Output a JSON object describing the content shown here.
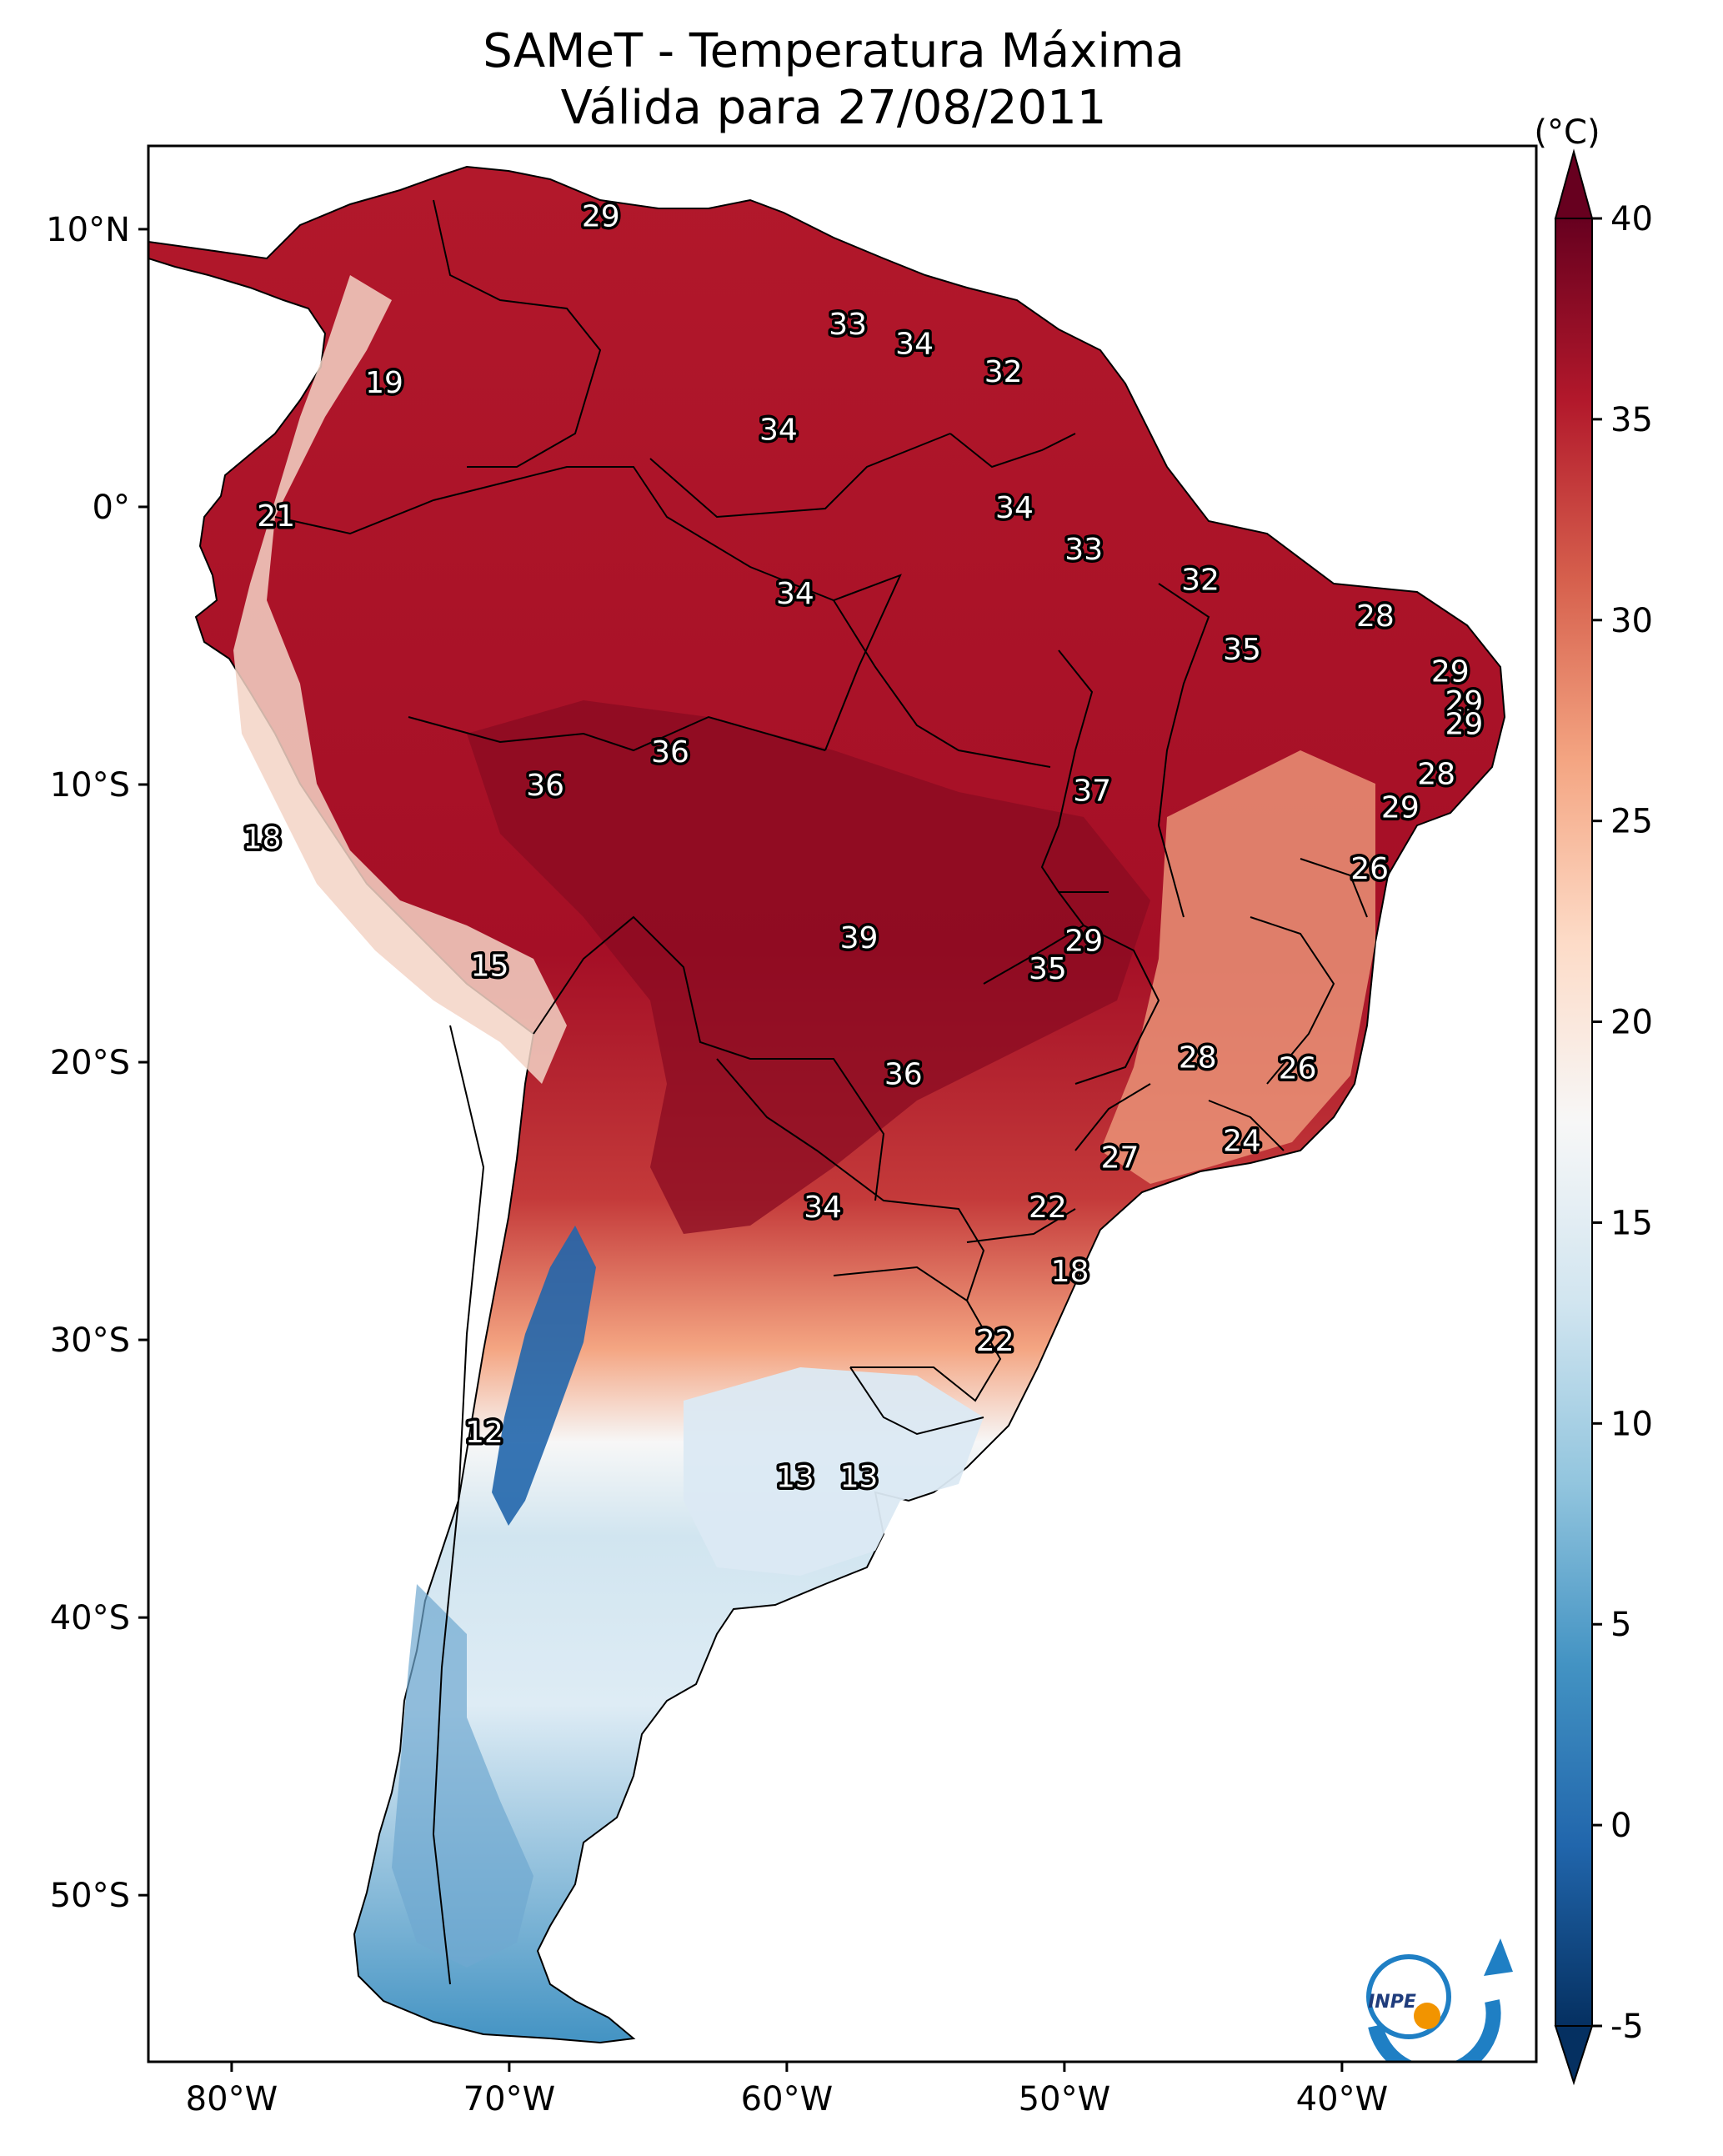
{
  "title": {
    "line1": "SAMeT - Temperatura Máxima",
    "line2": "Válida para 27/08/2011"
  },
  "colorbar": {
    "unit": "(°C)",
    "min": -5,
    "max": 40,
    "ticks": [
      "40",
      "35",
      "30",
      "25",
      "20",
      "15",
      "10",
      "5",
      "0",
      "-5"
    ],
    "colors": [
      "#053061",
      "#2166ac",
      "#4393c3",
      "#92c5de",
      "#d1e5f0",
      "#f7f7f7",
      "#fddbc7",
      "#f4a582",
      "#d6604d",
      "#b2182b",
      "#67001f"
    ]
  },
  "axes": {
    "lon_labels": [
      "80°W",
      "70°W",
      "60°W",
      "50°W",
      "40°W"
    ],
    "lat_labels": [
      "10°N",
      "0°",
      "10°S",
      "20°S",
      "30°S",
      "40°S",
      "50°S"
    ]
  },
  "map_data": {
    "region": "South America",
    "variable": "Temperatura Máxima",
    "lon_range": [
      -83,
      -33
    ],
    "lat_range": [
      -56,
      13
    ],
    "point_labels": [
      {
        "value": "29",
        "lon": -66.7,
        "lat": 10.5
      },
      {
        "value": "33",
        "lon": -57.8,
        "lat": 6.6
      },
      {
        "value": "34",
        "lon": -55.4,
        "lat": 5.9
      },
      {
        "value": "32",
        "lon": -52.2,
        "lat": 4.9
      },
      {
        "value": "19",
        "lon": -74.5,
        "lat": 4.5
      },
      {
        "value": "34",
        "lon": -60.3,
        "lat": 2.8
      },
      {
        "value": "34",
        "lon": -51.8,
        "lat": 0.0
      },
      {
        "value": "21",
        "lon": -78.4,
        "lat": -0.3
      },
      {
        "value": "33",
        "lon": -49.3,
        "lat": -1.5
      },
      {
        "value": "32",
        "lon": -45.1,
        "lat": -2.6
      },
      {
        "value": "34",
        "lon": -59.7,
        "lat": -3.1
      },
      {
        "value": "28",
        "lon": -38.8,
        "lat": -3.9
      },
      {
        "value": "35",
        "lon": -43.6,
        "lat": -5.1
      },
      {
        "value": "29",
        "lon": -36.1,
        "lat": -5.9
      },
      {
        "value": "29",
        "lon": -35.6,
        "lat": -7.0
      },
      {
        "value": "29",
        "lon": -35.6,
        "lat": -7.8
      },
      {
        "value": "36",
        "lon": -64.2,
        "lat": -8.8
      },
      {
        "value": "28",
        "lon": -36.6,
        "lat": -9.6
      },
      {
        "value": "36",
        "lon": -68.7,
        "lat": -10.0
      },
      {
        "value": "37",
        "lon": -49.0,
        "lat": -10.2
      },
      {
        "value": "29",
        "lon": -37.9,
        "lat": -10.8
      },
      {
        "value": "18",
        "lon": -78.9,
        "lat": -11.9
      },
      {
        "value": "26",
        "lon": -39.0,
        "lat": -13.0
      },
      {
        "value": "39",
        "lon": -57.4,
        "lat": -15.5
      },
      {
        "value": "29",
        "lon": -49.3,
        "lat": -15.6
      },
      {
        "value": "15",
        "lon": -70.7,
        "lat": -16.5
      },
      {
        "value": "35",
        "lon": -50.6,
        "lat": -16.6
      },
      {
        "value": "28",
        "lon": -45.2,
        "lat": -19.8
      },
      {
        "value": "26",
        "lon": -41.6,
        "lat": -20.2
      },
      {
        "value": "36",
        "lon": -55.8,
        "lat": -20.4
      },
      {
        "value": "24",
        "lon": -43.6,
        "lat": -22.8
      },
      {
        "value": "27",
        "lon": -48.0,
        "lat": -23.4
      },
      {
        "value": "34",
        "lon": -58.7,
        "lat": -25.2
      },
      {
        "value": "22",
        "lon": -50.6,
        "lat": -25.2
      },
      {
        "value": "18",
        "lon": -49.8,
        "lat": -27.5
      },
      {
        "value": "22",
        "lon": -52.5,
        "lat": -30.0
      },
      {
        "value": "12",
        "lon": -70.9,
        "lat": -33.3
      },
      {
        "value": "13",
        "lon": -59.7,
        "lat": -34.9
      },
      {
        "value": "13",
        "lon": -57.4,
        "lat": -34.9
      }
    ]
  },
  "logo": {
    "text": "INPE"
  }
}
